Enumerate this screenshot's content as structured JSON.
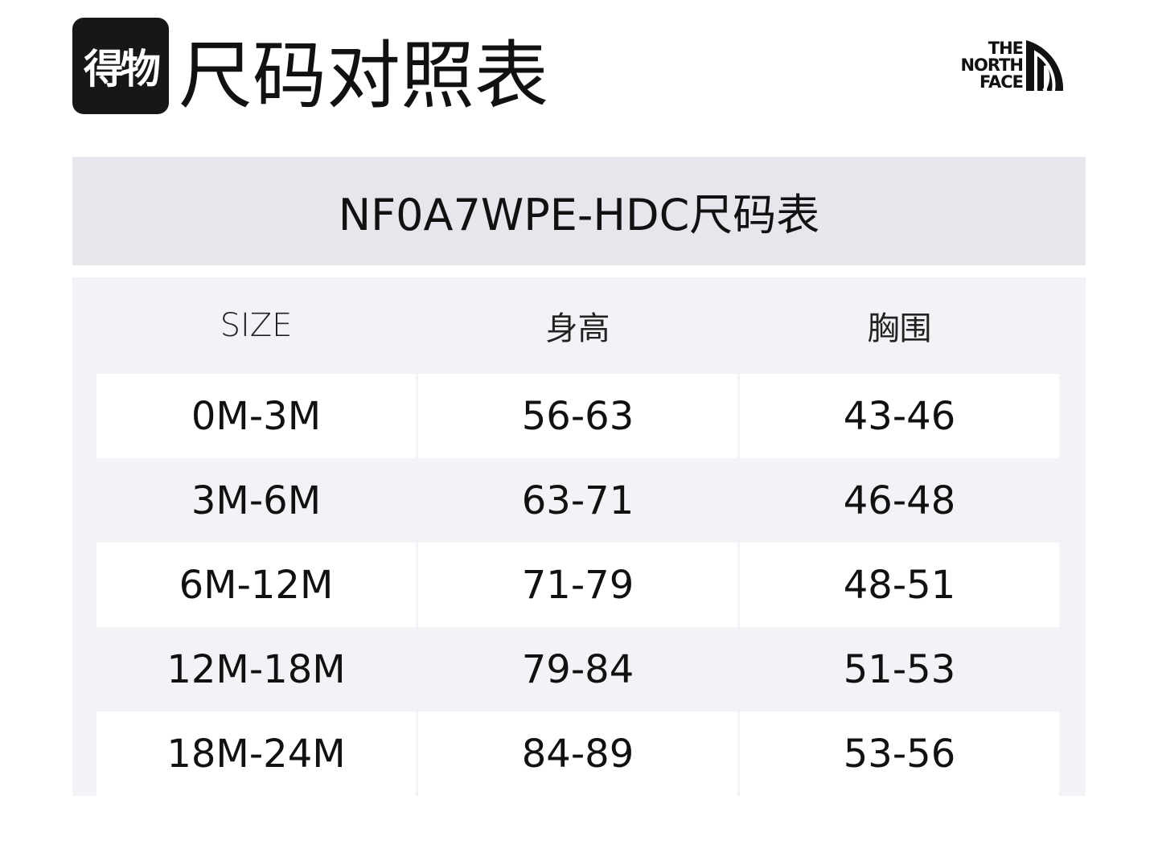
{
  "header": {
    "logo": "得物",
    "title": "尺码对照表",
    "brand": [
      "THE",
      "NORTH",
      "FACE"
    ]
  },
  "table": {
    "title": "NF0A7WPE-HDC尺码表",
    "columns": [
      "SIZE",
      "身高",
      "胸围"
    ],
    "rows": [
      [
        "0M-3M",
        "56-63",
        "43-46"
      ],
      [
        "3M-6M",
        "63-71",
        "46-48"
      ],
      [
        "6M-12M",
        "71-79",
        "48-51"
      ],
      [
        "12M-18M",
        "79-84",
        "51-53"
      ],
      [
        "18M-24M",
        "84-89",
        "53-56"
      ]
    ]
  }
}
